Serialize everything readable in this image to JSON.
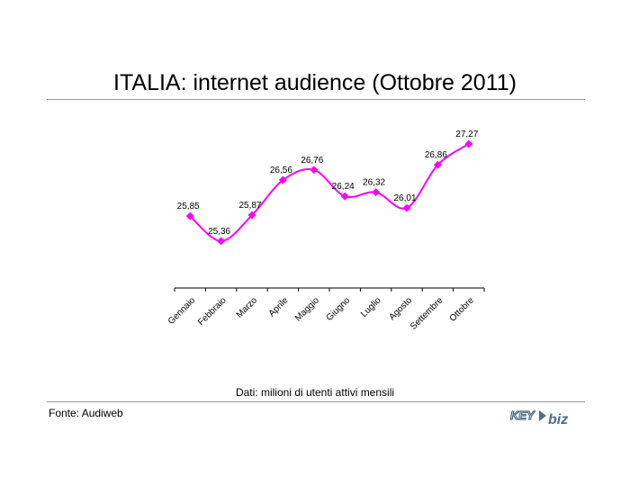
{
  "header": {
    "title": "ITALIA: internet audience (Ottobre 2011)"
  },
  "footer": {
    "caption": "Dati: milioni di utenti attivi mensili",
    "source": "Fonte: Audiweb",
    "logo_text": "KEY4biz"
  },
  "colors": {
    "series": "#ff00ff",
    "axis": "#000000",
    "rule": "#9a9a9a",
    "logo": "#4a6f86"
  },
  "chart_data": {
    "type": "line",
    "title": "ITALIA: internet audience (Ottobre 2011)",
    "xlabel": "",
    "ylabel": "",
    "categories": [
      "Gennaio",
      "Febbraio",
      "Marzo",
      "Aprile",
      "Maggio",
      "Giugno",
      "Luglio",
      "Agosto",
      "Settembre",
      "Ottobre"
    ],
    "series": [
      {
        "name": "",
        "values": [
          25.85,
          25.36,
          25.87,
          26.56,
          26.76,
          26.24,
          26.32,
          26.01,
          26.86,
          27.27
        ]
      }
    ],
    "data_labels": [
      "25,85",
      "25,36",
      "25,87",
      "26,56",
      "26,76",
      "26,24",
      "26,32",
      "26,01",
      "26,86",
      "27,27"
    ],
    "marker": "diamond",
    "smooth": true,
    "grid": false,
    "legend": "none"
  }
}
